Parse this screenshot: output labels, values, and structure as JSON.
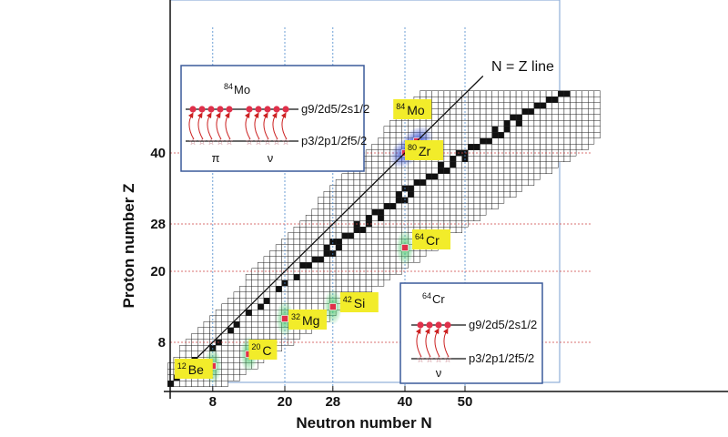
{
  "chart_data": {
    "type": "diagram",
    "title": "",
    "xlabel": "Neutron number N",
    "ylabel": "Proton number Z",
    "x_ticks": [
      8,
      20,
      28,
      40,
      50
    ],
    "y_ticks": [
      8,
      20,
      28,
      40
    ],
    "nz_line_label": "N = Z line",
    "nuclei": [
      {
        "mass": "12",
        "symbol": "Be",
        "N": 8,
        "Z": 4,
        "glow": "green"
      },
      {
        "mass": "20",
        "symbol": "C",
        "N": 14,
        "Z": 6,
        "glow": "green"
      },
      {
        "mass": "32",
        "symbol": "Mg",
        "N": 20,
        "Z": 12,
        "glow": "green"
      },
      {
        "mass": "42",
        "symbol": "Si",
        "N": 28,
        "Z": 14,
        "glow": "green"
      },
      {
        "mass": "64",
        "symbol": "Cr",
        "N": 40,
        "Z": 24,
        "glow": "green"
      },
      {
        "mass": "80",
        "symbol": "Zr",
        "N": 40,
        "Z": 40,
        "glow": "blue"
      },
      {
        "mass": "84",
        "symbol": "Mo",
        "N": 42,
        "Z": 42,
        "glow": "blue"
      }
    ],
    "insets": [
      {
        "title_mass": "84",
        "title_symbol": "Mo",
        "upper_level": "g9/2d5/2s1/2",
        "lower_level": "p3/2p1/2f5/2",
        "columns": [
          "π",
          "ν"
        ]
      },
      {
        "title_mass": "64",
        "title_symbol": "Cr",
        "upper_level": "g9/2d5/2s1/2",
        "lower_level": "p3/2p1/2f5/2",
        "columns": [
          "ν"
        ]
      }
    ]
  },
  "colors": {
    "label_bg": "#f2ec2a",
    "particle": "#e0304a",
    "arrow": "#cc2222",
    "box_border": "#3a5a9a",
    "green_glow": "#4fbf6a",
    "blue_glow": "#3a55c8",
    "guide_red": "#cc4444",
    "guide_blue": "#4a88cc"
  }
}
